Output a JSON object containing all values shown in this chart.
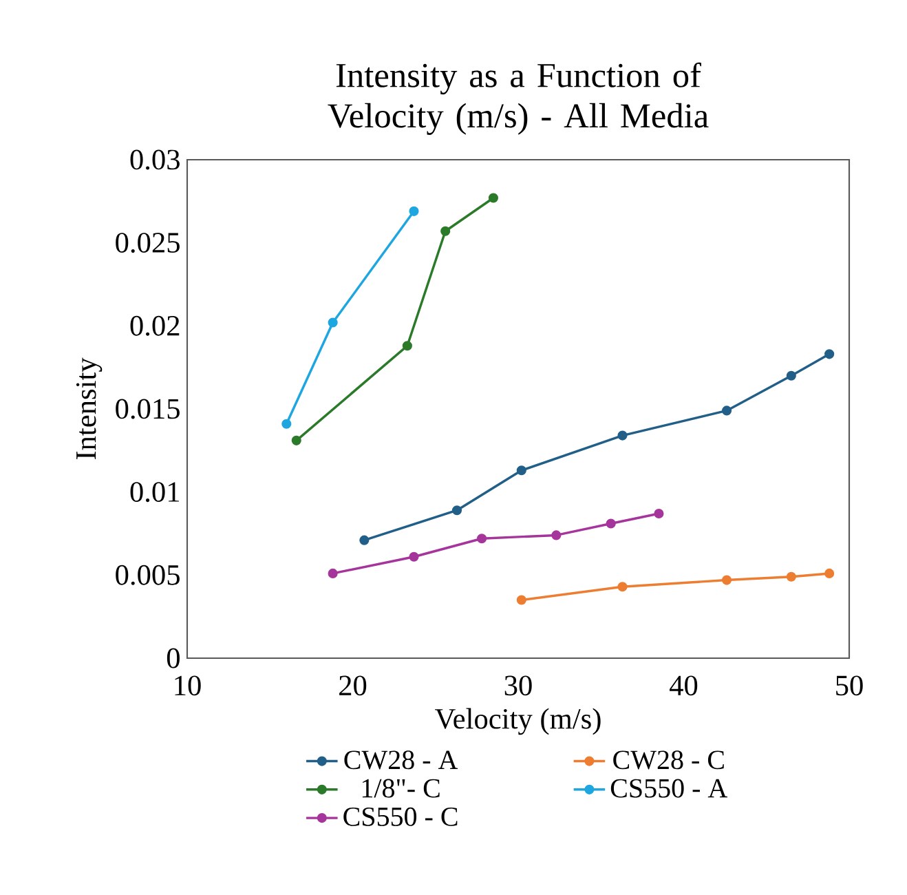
{
  "chart_data": {
    "type": "line",
    "title": "Intensity as a Function of Velocity (m/s) - All Media",
    "xlabel": "Velocity (m/s)",
    "ylabel": "Intensity",
    "xlim": [
      10,
      50
    ],
    "xticks": [
      10,
      20,
      30,
      40,
      50
    ],
    "ylim": [
      0,
      0.03
    ],
    "yticks": [
      0,
      0.005,
      0.01,
      0.015,
      0.02,
      0.025,
      0.03
    ],
    "legend": "bottom",
    "marker": "circle",
    "line_style": "solid",
    "series": [
      {
        "name": "CW28 - A",
        "color": "#215f89",
        "x": [
          20.7,
          26.3,
          30.2,
          36.3,
          42.6,
          46.5,
          48.8
        ],
        "values": [
          0.0071,
          0.0089,
          0.0113,
          0.0134,
          0.0149,
          0.017,
          0.0183
        ]
      },
      {
        "name": "CW28 - C",
        "color": "#ed7d31",
        "x": [
          30.2,
          36.3,
          42.6,
          46.5,
          48.8
        ],
        "values": [
          0.0035,
          0.0043,
          0.0047,
          0.0049,
          0.0051
        ]
      },
      {
        "name": "1/8\"- C",
        "color": "#2a7a2a",
        "x": [
          16.6,
          23.3,
          25.6,
          28.5
        ],
        "values": [
          0.0131,
          0.0188,
          0.0257,
          0.0277
        ]
      },
      {
        "name": "CS550 - A",
        "color": "#1ea6e0",
        "x": [
          16.0,
          18.8,
          23.7
        ],
        "values": [
          0.0141,
          0.0202,
          0.0269
        ]
      },
      {
        "name": "CS550 - C",
        "color": "#a6359b",
        "x": [
          18.8,
          23.7,
          27.8,
          32.3,
          35.6,
          38.5
        ],
        "values": [
          0.0051,
          0.0061,
          0.0072,
          0.0074,
          0.0081,
          0.0087
        ]
      }
    ]
  }
}
